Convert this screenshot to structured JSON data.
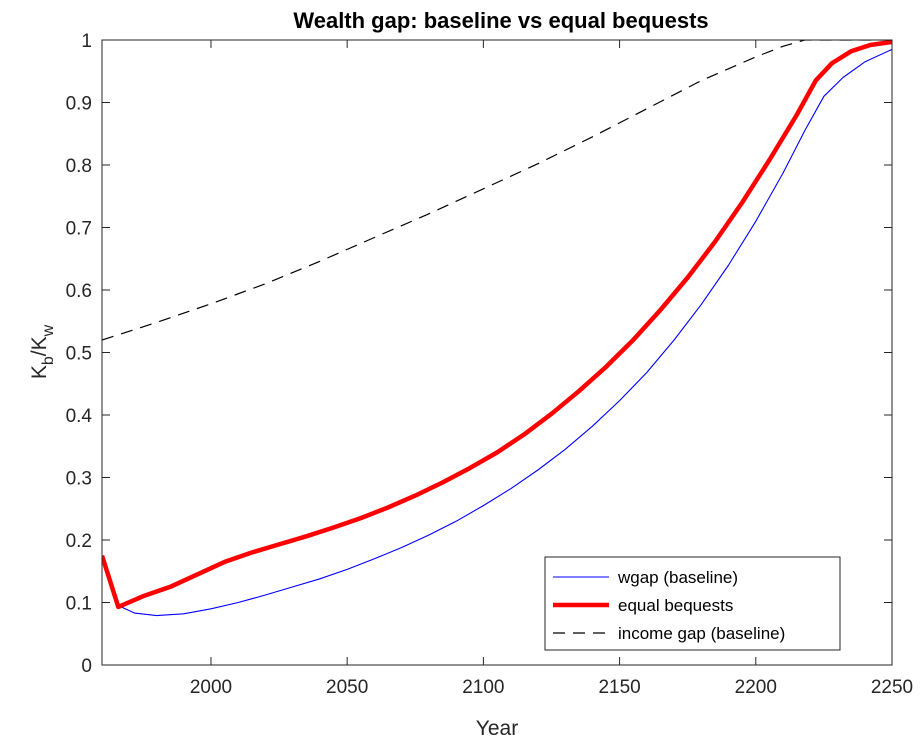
{
  "chart_data": {
    "type": "line",
    "title": "Wealth gap: baseline vs equal bequests",
    "xlabel": "Year",
    "ylabel": {
      "main": "K",
      "sub1": "b",
      "mid": "/K",
      "sub2": "w"
    },
    "xlim": [
      1960,
      2250
    ],
    "ylim": [
      0,
      1
    ],
    "xticks": [
      2000,
      2050,
      2100,
      2150,
      2200,
      2250
    ],
    "yticks": [
      0,
      0.1,
      0.2,
      0.3,
      0.4,
      0.5,
      0.6,
      0.7,
      0.8,
      0.9,
      1
    ],
    "grid": false,
    "legend_position": "bottom-right",
    "series": [
      {
        "name": "wgap (baseline)",
        "color": "#0000ff",
        "style": "solid-thin",
        "x": [
          1960,
          1966,
          1972,
          1980,
          1990,
          2000,
          2010,
          2020,
          2030,
          2040,
          2050,
          2060,
          2070,
          2080,
          2090,
          2100,
          2110,
          2120,
          2130,
          2140,
          2150,
          2160,
          2170,
          2180,
          2190,
          2200,
          2210,
          2218,
          2225,
          2232,
          2240,
          2250
        ],
        "y": [
          0.175,
          0.095,
          0.083,
          0.079,
          0.082,
          0.09,
          0.1,
          0.112,
          0.125,
          0.138,
          0.153,
          0.17,
          0.188,
          0.208,
          0.23,
          0.255,
          0.282,
          0.312,
          0.345,
          0.382,
          0.423,
          0.468,
          0.52,
          0.577,
          0.64,
          0.71,
          0.787,
          0.855,
          0.91,
          0.94,
          0.965,
          0.985
        ]
      },
      {
        "name": "equal bequests",
        "color": "#ff0000",
        "style": "solid-thick",
        "x": [
          1960,
          1966,
          1975,
          1985,
          1995,
          2005,
          2015,
          2025,
          2035,
          2045,
          2055,
          2065,
          2075,
          2085,
          2095,
          2105,
          2115,
          2125,
          2135,
          2145,
          2155,
          2165,
          2175,
          2185,
          2195,
          2205,
          2215,
          2222,
          2228,
          2235,
          2242,
          2250
        ],
        "y": [
          0.175,
          0.093,
          0.11,
          0.125,
          0.145,
          0.165,
          0.18,
          0.193,
          0.206,
          0.22,
          0.235,
          0.252,
          0.271,
          0.292,
          0.315,
          0.34,
          0.369,
          0.402,
          0.438,
          0.477,
          0.52,
          0.568,
          0.62,
          0.677,
          0.74,
          0.808,
          0.88,
          0.935,
          0.963,
          0.982,
          0.992,
          0.997
        ]
      },
      {
        "name": "income gap (baseline)",
        "color": "#000000",
        "style": "dashed",
        "x": [
          1960,
          1980,
          2000,
          2020,
          2040,
          2060,
          2080,
          2100,
          2120,
          2140,
          2160,
          2180,
          2200,
          2210,
          2218,
          2250
        ],
        "y": [
          0.52,
          0.548,
          0.578,
          0.61,
          0.646,
          0.684,
          0.722,
          0.762,
          0.802,
          0.845,
          0.89,
          0.935,
          0.973,
          0.99,
          1.0,
          1.0
        ]
      }
    ]
  }
}
